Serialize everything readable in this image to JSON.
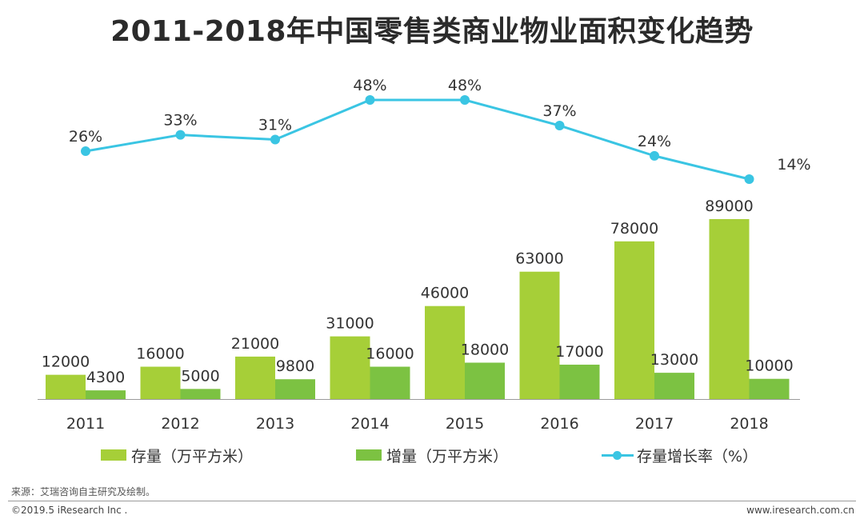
{
  "title": "2011-2018年中国零售类商业物业面积变化趋势",
  "colors": {
    "stock": "#a6cf38",
    "increment": "#7cc242",
    "rate": "#3ac5e3",
    "axis": "#9a9a9a"
  },
  "legend": {
    "stock": "存量（万平方米）",
    "increment": "增量（万平方米）",
    "rate": "存量增长率（%）"
  },
  "chart_data": {
    "type": "bar",
    "title": "2011-2018年中国零售类商业物业面积变化趋势",
    "categories": [
      "2011",
      "2012",
      "2013",
      "2014",
      "2015",
      "2016",
      "2017",
      "2018"
    ],
    "series": [
      {
        "name": "存量（万平方米）",
        "type": "bar",
        "values": [
          12000,
          16000,
          21000,
          31000,
          46000,
          63000,
          78000,
          89000
        ],
        "labels": [
          "12000",
          "16000",
          "21000",
          "31000",
          "46000",
          "63000",
          "78000",
          "89000"
        ]
      },
      {
        "name": "增量（万平方米）",
        "type": "bar",
        "values": [
          4300,
          5000,
          9800,
          16000,
          18000,
          17000,
          13000,
          10000
        ],
        "labels": [
          "4300",
          "5000",
          "9800",
          "16000",
          "18000",
          "17000",
          "13000",
          "10000"
        ]
      },
      {
        "name": "存量增长率（%）",
        "type": "line",
        "values": [
          26,
          33,
          31,
          48,
          48,
          37,
          24,
          14
        ],
        "labels": [
          "26%",
          "33%",
          "31%",
          "48%",
          "48%",
          "37%",
          "24%",
          "14%"
        ]
      }
    ],
    "xlabel": "",
    "ylabel": "",
    "bar_ylim": [
      0,
      89000
    ],
    "rate_ylim": [
      14,
      48
    ],
    "legend_position": "bottom"
  },
  "footer": {
    "source": "来源：艾瑞咨询自主研究及绘制。",
    "copyright": "©2019.5 iResearch Inc .",
    "website": "www.iresearch.com.cn"
  }
}
